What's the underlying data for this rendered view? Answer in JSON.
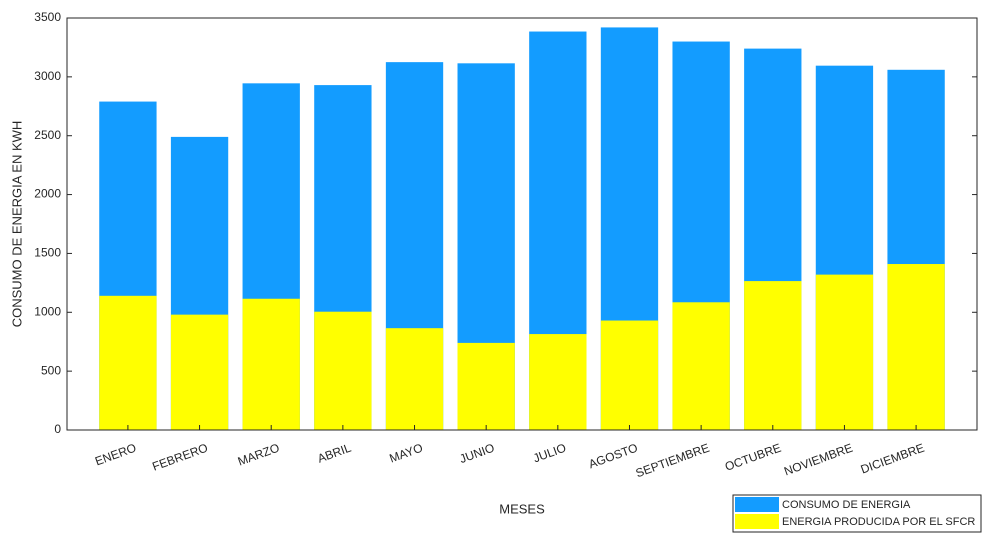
{
  "chart_data": {
    "type": "bar",
    "overlay": true,
    "x_label": "MESES",
    "y_label": "CONSUMO DE ENERGIA EN KWH",
    "categories": [
      "ENERO",
      "FEBRERO",
      "MARZO",
      "ABRIL",
      "MAYO",
      "JUNIO",
      "JULIO",
      "AGOSTO",
      "SEPTIEMBRE",
      "OCTUBRE",
      "NOVIEMBRE",
      "DICIEMBRE"
    ],
    "series": [
      {
        "name": "CONSUMO DE ENERGIA",
        "color": "#139cff",
        "values": [
          2790,
          2490,
          2945,
          2930,
          3125,
          3115,
          3385,
          3420,
          3300,
          3240,
          3095,
          3060
        ]
      },
      {
        "name": "ENERGIA PRODUCIDA POR EL SFCR",
        "color": "#ffff00",
        "values": [
          1140,
          980,
          1115,
          1005,
          865,
          740,
          815,
          930,
          1085,
          1265,
          1320,
          1410
        ]
      }
    ],
    "ylim": [
      0,
      3500
    ],
    "yticks": [
      0,
      500,
      1000,
      1500,
      2000,
      2500,
      3000,
      3500
    ],
    "grid": false,
    "legend": "bottom-right"
  }
}
